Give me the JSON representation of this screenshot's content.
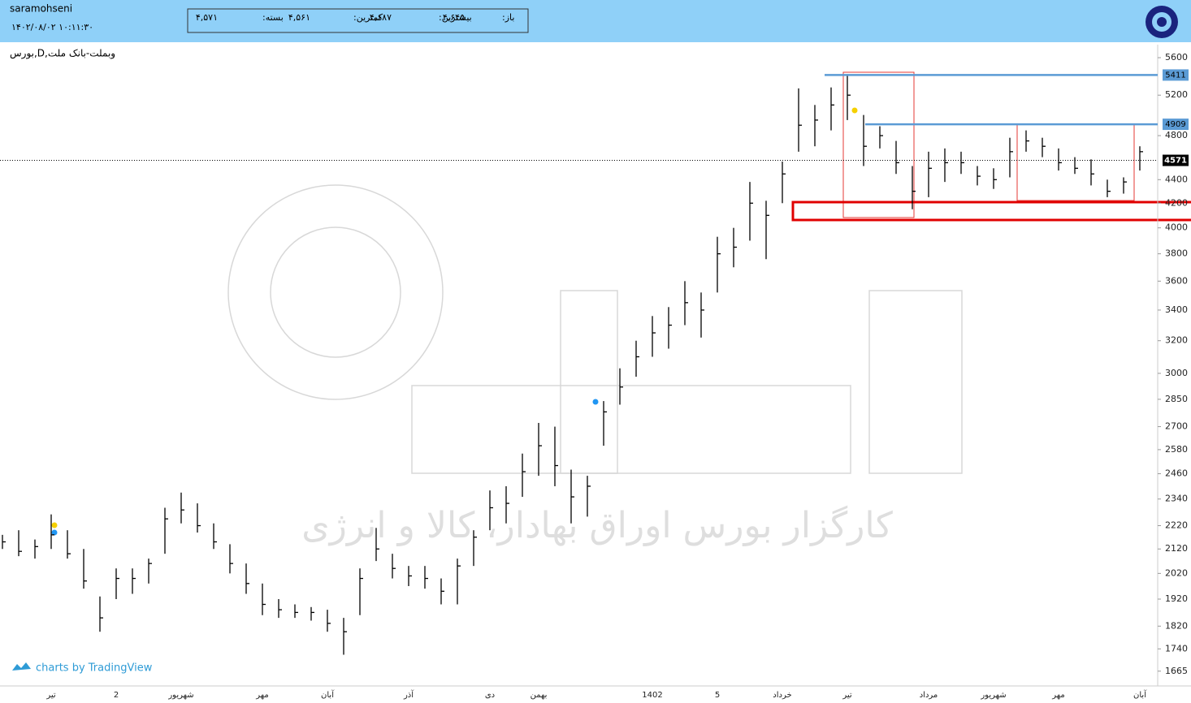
{
  "header": {
    "user": "saramohseni",
    "datetime": "۱۴۰۲/۰۸/۰۲ ۱۰:۱۱:۳۰",
    "quote": [
      {
        "label": "باز:",
        "value": "۴,۶۴۵"
      },
      {
        "label": "بیشترین:",
        "value": "۴,۶۸۷"
      },
      {
        "label": "کمترین:",
        "value": "۴,۵۶۱"
      },
      {
        "label": "بسته:",
        "value": "۴,۵۷۱"
      }
    ]
  },
  "chart_data": {
    "type": "ohlc",
    "symbol": "بورس,D,وبملت-بانک ملت",
    "watermark": "کارگزار بورس اوراق بهادار، کالا و انرژی",
    "credit": "charts by TradingView",
    "categories": [
      null,
      null,
      null,
      "تیر",
      null,
      null,
      null,
      "2",
      null,
      null,
      null,
      "شهریور",
      null,
      null,
      null,
      null,
      "مهر",
      null,
      null,
      null,
      "آبان",
      null,
      null,
      null,
      null,
      "آذر",
      null,
      null,
      null,
      null,
      "دی",
      null,
      null,
      "بهمن",
      null,
      null,
      null,
      null,
      null,
      null,
      "1402",
      null,
      null,
      null,
      "5",
      null,
      null,
      null,
      "خرداد",
      null,
      null,
      null,
      "تیر",
      null,
      null,
      null,
      null,
      "مرداد",
      null,
      null,
      null,
      "شهریور",
      null,
      null,
      null,
      "مهر",
      null,
      null,
      null,
      null,
      "آبان"
    ],
    "high": [
      2180,
      2200,
      2160,
      2270,
      2200,
      2120,
      1930,
      2040,
      2040,
      2080,
      2300,
      2370,
      2320,
      2230,
      2140,
      2060,
      1980,
      1920,
      1900,
      1890,
      1880,
      1850,
      2040,
      2210,
      2100,
      2050,
      2050,
      2000,
      2080,
      2200,
      2380,
      2400,
      2560,
      2720,
      2700,
      2480,
      2450,
      2840,
      3030,
      3200,
      3360,
      3420,
      3600,
      3520,
      3930,
      4000,
      4380,
      4220,
      4560,
      5270,
      5100,
      5280,
      5420,
      5000,
      4890,
      4750,
      4520,
      4650,
      4680,
      4650,
      4520,
      4500,
      4780,
      4850,
      4780,
      4680,
      4600,
      4580,
      4400,
      4420,
      4700
    ],
    "low": [
      2120,
      2090,
      2080,
      2120,
      2080,
      1960,
      1800,
      1920,
      1940,
      1980,
      2100,
      2230,
      2190,
      2120,
      2020,
      1940,
      1860,
      1850,
      1850,
      1840,
      1800,
      1720,
      1860,
      2070,
      2000,
      1970,
      1960,
      1900,
      1900,
      2050,
      2200,
      2230,
      2350,
      2450,
      2400,
      2230,
      2260,
      2600,
      2820,
      2980,
      3100,
      3150,
      3300,
      3220,
      3520,
      3700,
      3900,
      3760,
      4200,
      4650,
      4700,
      4850,
      4950,
      4520,
      4680,
      4450,
      4150,
      4250,
      4380,
      4450,
      4350,
      4320,
      4420,
      4650,
      4600,
      4480,
      4450,
      4350,
      4250,
      4280,
      4480
    ],
    "close": [
      2150,
      2110,
      2130,
      2180,
      2100,
      1990,
      1850,
      2000,
      2000,
      2060,
      2250,
      2290,
      2220,
      2150,
      2060,
      1980,
      1900,
      1880,
      1870,
      1870,
      1830,
      1800,
      2000,
      2120,
      2040,
      2010,
      2000,
      1950,
      2050,
      2170,
      2300,
      2320,
      2470,
      2600,
      2500,
      2350,
      2400,
      2780,
      2920,
      3100,
      3250,
      3300,
      3450,
      3400,
      3800,
      3850,
      4200,
      4100,
      4450,
      4900,
      4950,
      5100,
      5200,
      4700,
      4800,
      4550,
      4300,
      4500,
      4550,
      4550,
      4430,
      4400,
      4650,
      4750,
      4700,
      4550,
      4500,
      4450,
      4300,
      4380,
      4650
    ],
    "levels": [
      5411,
      4909
    ],
    "last_price": 4571,
    "log_scale": true,
    "ylim": [
      1617,
      5746
    ],
    "yticks": [
      1665,
      1740,
      1820,
      1920,
      2020,
      2120,
      2220,
      2340,
      2460,
      2580,
      2700,
      2850,
      3000,
      3200,
      3400,
      3600,
      3800,
      4000,
      4200,
      4400,
      4800,
      5200,
      5600
    ],
    "bar_color": "#000000",
    "level_color": "#5b9bd5"
  }
}
